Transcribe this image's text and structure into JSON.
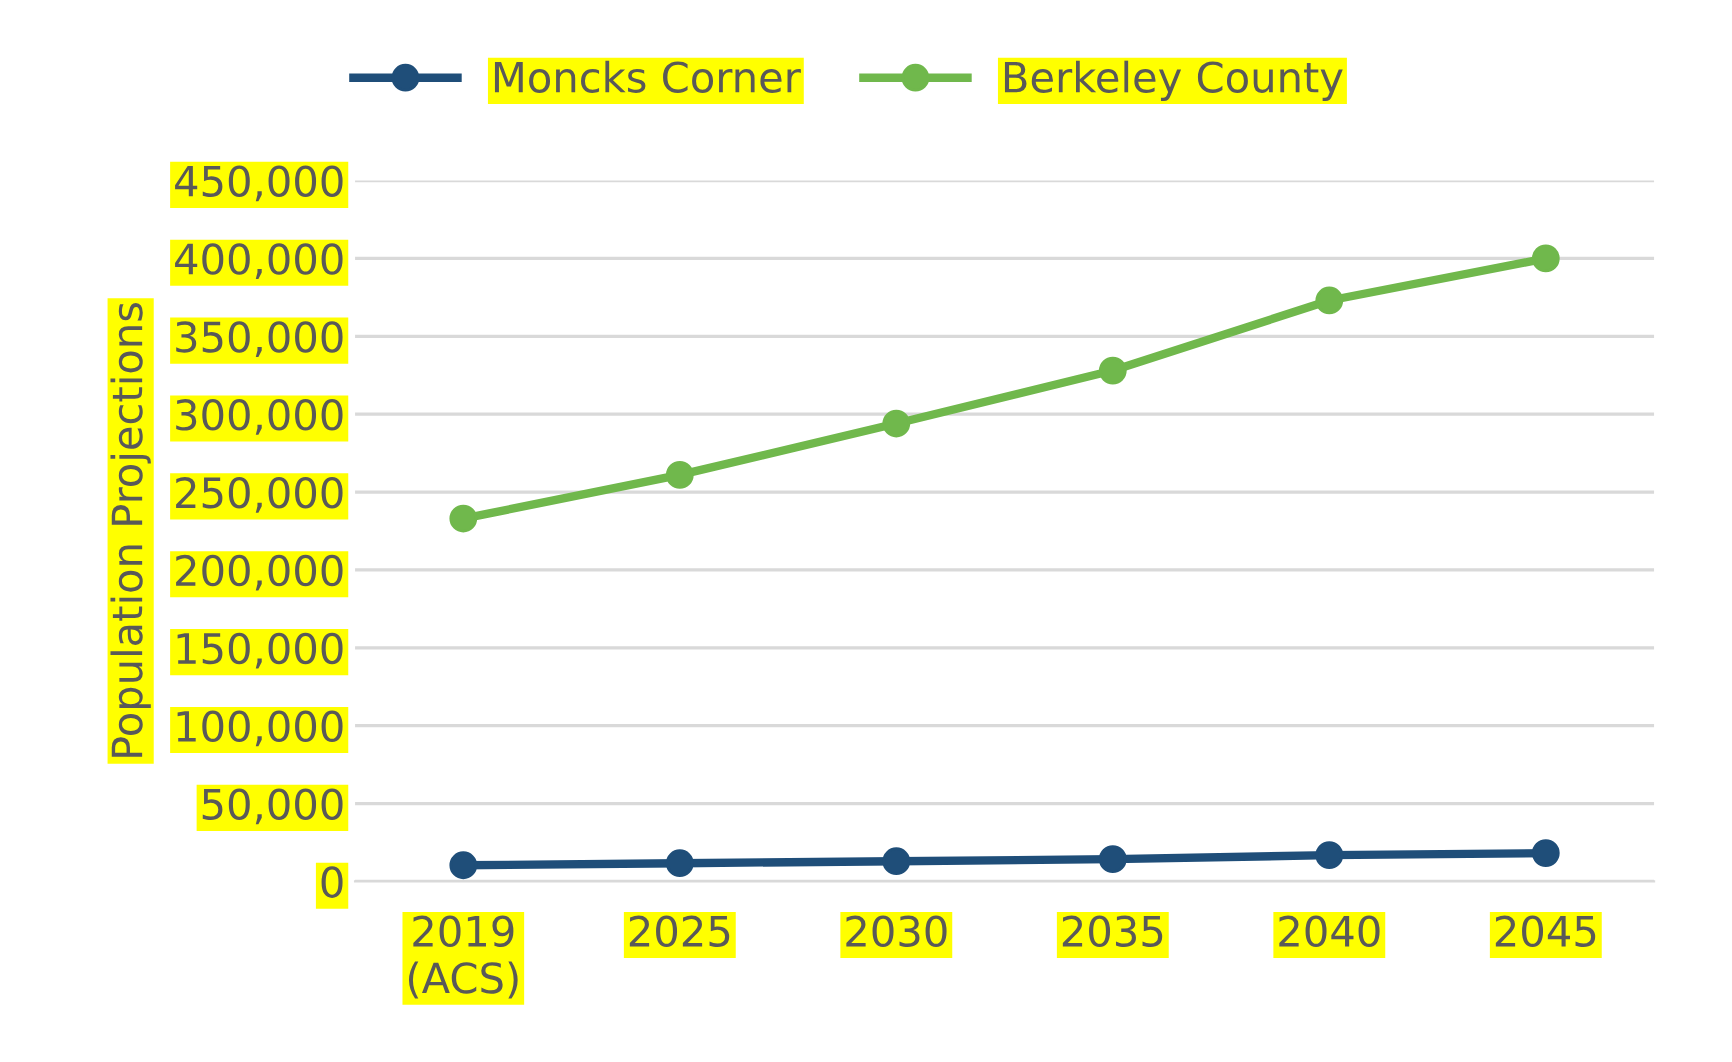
{
  "chart_data": {
    "type": "line",
    "ylabel": "Population Projections",
    "categories": [
      "2019\n(ACS)",
      "2025",
      "2030",
      "2035",
      "2040",
      "2045"
    ],
    "series": [
      {
        "name": "Moncks Corner",
        "color": "#1f4e79",
        "values": [
          10400,
          11700,
          13000,
          14300,
          16900,
          18200
        ]
      },
      {
        "name": "Berkeley County",
        "color": "#70b84c",
        "values": [
          233000,
          261000,
          294000,
          328000,
          373000,
          400000
        ]
      }
    ],
    "ylim": [
      0,
      450000
    ],
    "yticks": [
      {
        "value": 0,
        "label": "0"
      },
      {
        "value": 50000,
        "label": "50,000"
      },
      {
        "value": 100000,
        "label": "100,000"
      },
      {
        "value": 150000,
        "label": "150,000"
      },
      {
        "value": 200000,
        "label": "200,000"
      },
      {
        "value": 250000,
        "label": "250,000"
      },
      {
        "value": 300000,
        "label": "300,000"
      },
      {
        "value": 350000,
        "label": "350,000"
      },
      {
        "value": 400000,
        "label": "400,000"
      },
      {
        "value": 450000,
        "label": "450,000"
      }
    ],
    "grid": "y",
    "legend": "top",
    "marker": "circle",
    "line_style": "solid"
  }
}
